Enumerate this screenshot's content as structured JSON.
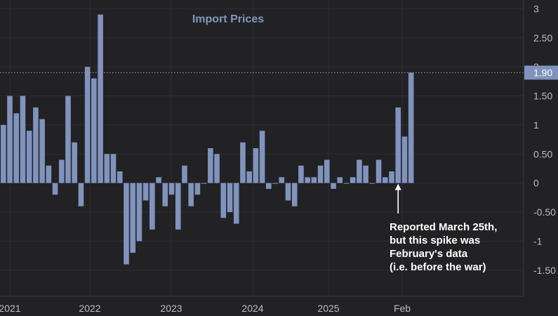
{
  "chart_data": {
    "type": "bar",
    "title": "Import Prices",
    "xlabel": "",
    "ylabel": "",
    "ylim": [
      -1.95,
      3.15
    ],
    "grid": true,
    "x_tick_labels": [
      "2021",
      "2022",
      "2023",
      "2024",
      "2025",
      "Feb"
    ],
    "y_ticks": [
      {
        "value": 3,
        "label": "3"
      },
      {
        "value": 2.5,
        "label": "2.50"
      },
      {
        "value": 2,
        "label": "2"
      },
      {
        "value": 1.5,
        "label": "1.50"
      },
      {
        "value": 1,
        "label": "1"
      },
      {
        "value": 0.5,
        "label": "0.50"
      },
      {
        "value": 0,
        "label": "0"
      },
      {
        "value": -0.5,
        "label": "-0.50"
      },
      {
        "value": -1,
        "label": "-1"
      },
      {
        "value": -1.5,
        "label": "-1.50"
      }
    ],
    "bar_color": "#8093bd",
    "values": [
      1.0,
      1.5,
      1.2,
      1.5,
      0.9,
      1.3,
      1.1,
      0.3,
      -0.2,
      0.4,
      1.5,
      0.7,
      -0.4,
      2.0,
      1.8,
      2.9,
      0.5,
      0.5,
      0.2,
      -1.4,
      -1.2,
      -1.0,
      -0.3,
      -0.8,
      0.1,
      -0.4,
      -0.2,
      -0.8,
      0.3,
      -0.4,
      -0.2,
      0.0,
      0.6,
      0.5,
      -0.6,
      -0.5,
      -0.7,
      0.7,
      0.2,
      0.6,
      0.9,
      -0.1,
      0.0,
      0.1,
      -0.3,
      -0.4,
      0.3,
      0.1,
      0.1,
      0.3,
      0.4,
      -0.1,
      0.1,
      0.0,
      0.1,
      0.4,
      0.3,
      0.0,
      0.4,
      0.1,
      0.2,
      1.3,
      0.8,
      1.9
    ],
    "last_value": 1.9,
    "last_value_label": "1.90",
    "annotation": {
      "lines": [
        "Reported March 25th,",
        "but this spike was",
        "February's data",
        "(i.e. before the war)"
      ],
      "points_to_index": 61
    }
  }
}
